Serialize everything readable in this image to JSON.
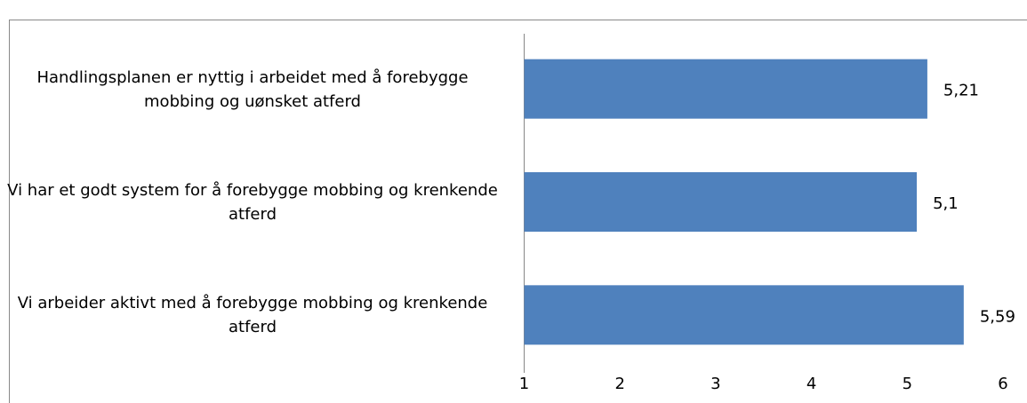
{
  "chart_data": {
    "type": "hbar",
    "categories": [
      "Handlingsplanen er nyttig i arbeidet med å forebygge mobbing og uønsket atferd",
      "Vi har et godt system for å forebygge mobbing og krenkende atferd",
      "Vi arbeider aktivt med å forebygge mobbing og krenkende atferd"
    ],
    "values": [
      5.21,
      5.1,
      5.59
    ],
    "value_labels": [
      "5,21",
      "5,1",
      "5,59"
    ],
    "color": "#4f81bd",
    "xlim": [
      1,
      6
    ],
    "xticks": [
      1,
      2,
      3,
      4,
      5,
      6
    ],
    "grid": false
  }
}
